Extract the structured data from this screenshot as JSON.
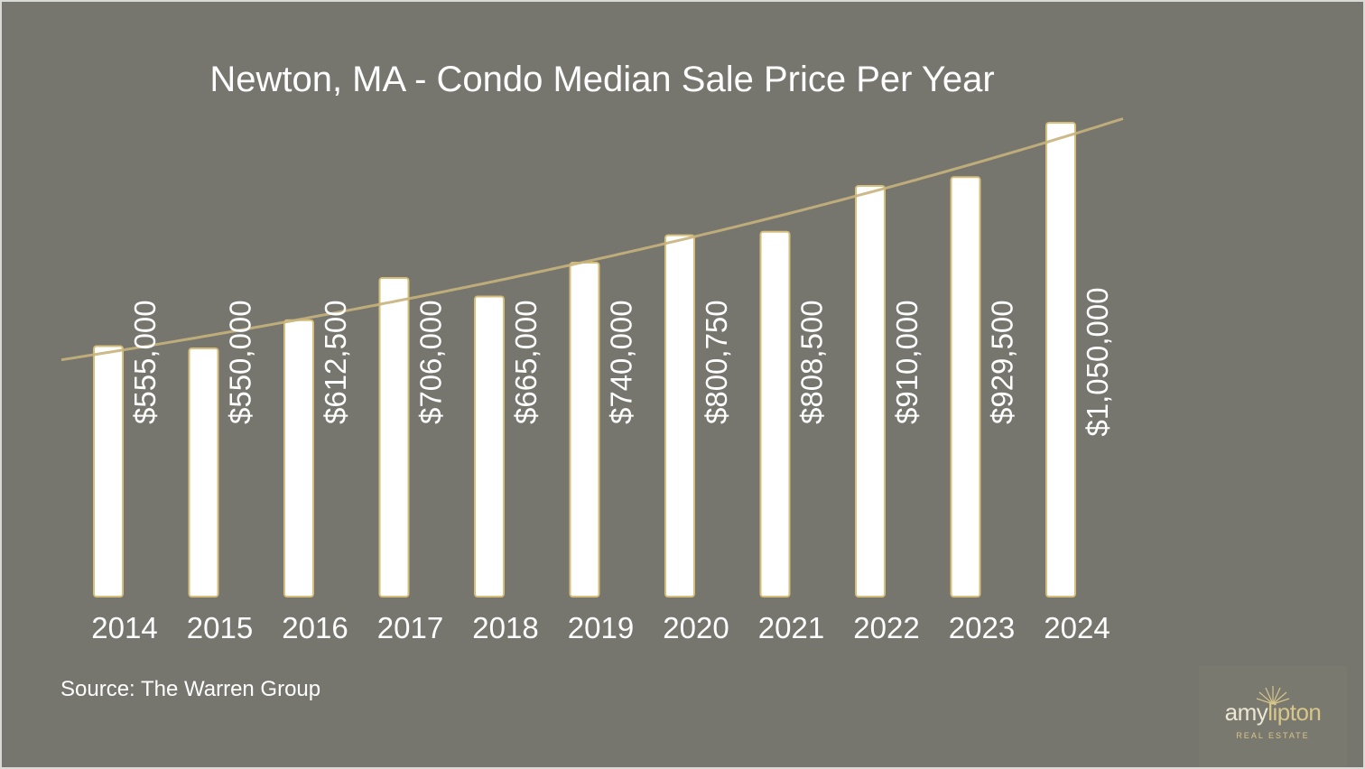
{
  "chart_data": {
    "type": "bar",
    "title": "Newton, MA - Condo Median Sale Price Per Year",
    "categories": [
      "2014",
      "2015",
      "2016",
      "2017",
      "2018",
      "2019",
      "2020",
      "2021",
      "2022",
      "2023",
      "2024"
    ],
    "values": [
      555000,
      550000,
      612500,
      706000,
      665000,
      740000,
      800750,
      808500,
      910000,
      929500,
      1050000
    ],
    "data_labels": [
      "$555,000",
      "$550,000",
      "$612,500",
      "$706,000",
      "$665,000",
      "$740,000",
      "$800,750",
      "$808,500",
      "$910,000",
      "$929,500",
      "$1,050,000"
    ],
    "trendline": "exponential",
    "xlabel": "",
    "ylabel": "",
    "ylim": [
      0,
      1050000
    ],
    "grid": false,
    "legend": "none",
    "colors": {
      "background": "#76766e",
      "bar_fill": "#ffffff",
      "bar_stroke": "#d6bf7a",
      "trendline": "#c7b27c",
      "text": "#ffffff"
    }
  },
  "source": "Source: The Warren Group",
  "logo": {
    "word_part1": "amy",
    "word_part2": "lipton",
    "subtitle": "REAL ESTATE",
    "icon": "sunburst-icon"
  }
}
